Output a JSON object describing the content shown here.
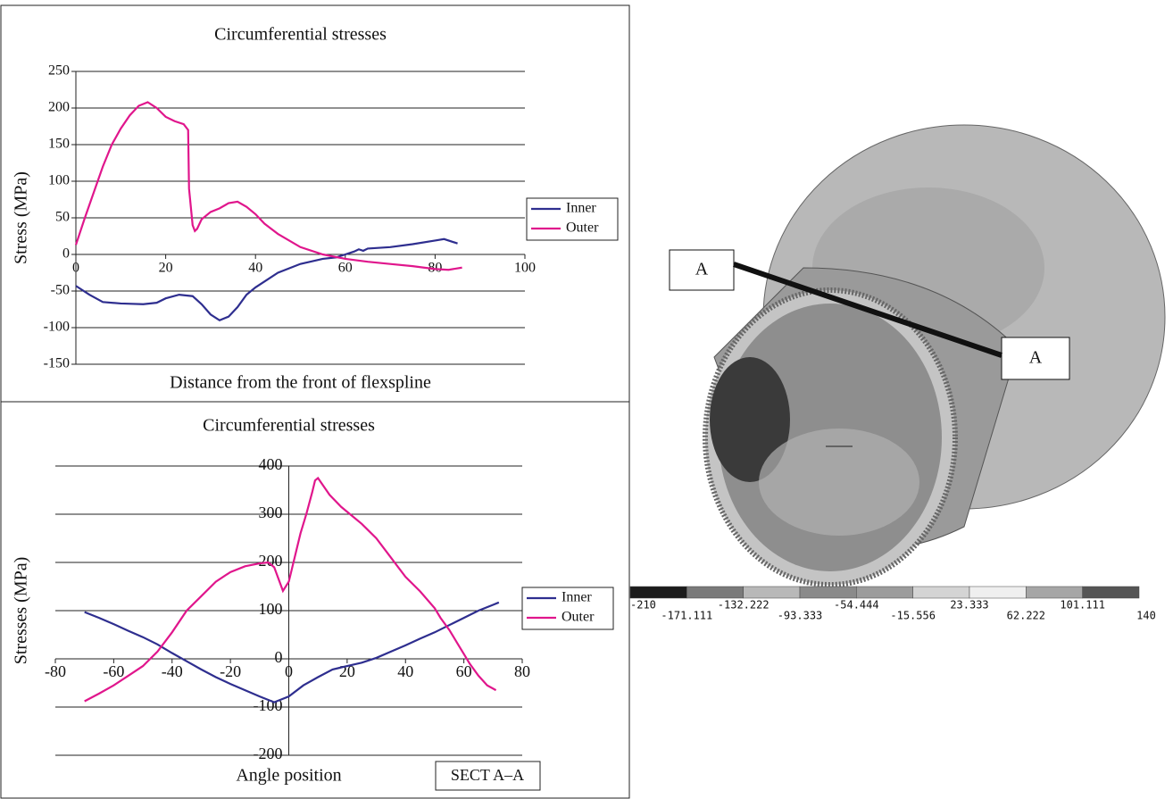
{
  "chart_data": [
    {
      "type": "line",
      "title": "Circumferential stresses",
      "x_label": "Distance from the front of flexspline",
      "y_label": "Stress (MPa)",
      "xlim": [
        0,
        100
      ],
      "xticks": [
        0,
        20,
        40,
        60,
        80,
        100
      ],
      "ylim": [
        -150,
        250
      ],
      "yticks": [
        -150,
        -100,
        -50,
        0,
        50,
        100,
        150,
        200,
        250
      ],
      "grid": true,
      "legend": "right",
      "series": [
        {
          "name": "Inner",
          "color": "#2e2e8f",
          "x": [
            0,
            3,
            6,
            10,
            15,
            18,
            20,
            23,
            26,
            28,
            30,
            32,
            34,
            36,
            38,
            40,
            45,
            50,
            55,
            58,
            60,
            62,
            63,
            64,
            65,
            70,
            75,
            80,
            82,
            85
          ],
          "values": [
            -43,
            -55,
            -65,
            -67,
            -68,
            -66,
            -60,
            -55,
            -57,
            -68,
            -82,
            -90,
            -85,
            -72,
            -55,
            -45,
            -25,
            -13,
            -6,
            -4,
            0,
            4,
            7,
            5,
            8,
            10,
            14,
            19,
            21,
            15
          ]
        },
        {
          "name": "Outer",
          "color": "#e0168c",
          "x": [
            0,
            2,
            4,
            6,
            8,
            10,
            12,
            14,
            16,
            18,
            20,
            22,
            24,
            25,
            25.2,
            26,
            26.5,
            27,
            28,
            30,
            32,
            34,
            36,
            38,
            40,
            42,
            45,
            50,
            55,
            60,
            65,
            70,
            75,
            80,
            83,
            86
          ],
          "values": [
            13,
            50,
            85,
            120,
            150,
            172,
            190,
            203,
            208,
            200,
            188,
            182,
            178,
            170,
            90,
            40,
            32,
            35,
            48,
            58,
            63,
            70,
            72,
            65,
            55,
            42,
            28,
            10,
            0,
            -6,
            -10,
            -13,
            -16,
            -20,
            -21,
            -18
          ]
        }
      ]
    },
    {
      "type": "line",
      "title": "Circumferential stresses",
      "x_label": "Angle position",
      "y_label": "Stresses (MPa)",
      "annotation": "SECT A–A",
      "xlim": [
        -80,
        80
      ],
      "xticks": [
        -80,
        -60,
        -40,
        -20,
        0,
        20,
        40,
        60,
        80
      ],
      "ylim": [
        -200,
        400
      ],
      "yticks": [
        -200,
        -100,
        0,
        100,
        200,
        300,
        400
      ],
      "grid": true,
      "legend": "right",
      "series": [
        {
          "name": "Inner",
          "color": "#2e2e8f",
          "x": [
            -70,
            -65,
            -60,
            -55,
            -50,
            -45,
            -40,
            -35,
            -30,
            -25,
            -20,
            -15,
            -10,
            -5,
            0,
            5,
            10,
            15,
            20,
            25,
            30,
            35,
            40,
            45,
            50,
            55,
            60,
            65,
            70,
            72
          ],
          "values": [
            97,
            85,
            72,
            58,
            45,
            30,
            12,
            -5,
            -22,
            -38,
            -52,
            -65,
            -78,
            -90,
            -78,
            -55,
            -38,
            -22,
            -15,
            -8,
            2,
            15,
            28,
            42,
            55,
            70,
            85,
            100,
            112,
            117
          ]
        },
        {
          "name": "Outer",
          "color": "#e0168c",
          "x": [
            -70,
            -65,
            -60,
            -55,
            -50,
            -45,
            -40,
            -35,
            -30,
            -25,
            -20,
            -15,
            -10,
            -7,
            -5,
            -2,
            0,
            2,
            4,
            6,
            8,
            9,
            10,
            14,
            18,
            25,
            30,
            35,
            40,
            45,
            50,
            52,
            55,
            58,
            60,
            62,
            65,
            68,
            71
          ],
          "values": [
            -88,
            -72,
            -55,
            -35,
            -15,
            15,
            55,
            100,
            130,
            160,
            180,
            192,
            198,
            200,
            190,
            141,
            160,
            210,
            260,
            300,
            345,
            370,
            375,
            340,
            315,
            280,
            250,
            210,
            170,
            140,
            105,
            85,
            60,
            30,
            10,
            -10,
            -35,
            -55,
            -65
          ]
        }
      ]
    }
  ],
  "model_view": {
    "section_labels": [
      "A",
      "A"
    ],
    "colorbar_labels": [
      -210,
      -171.111,
      -132.222,
      -93.333,
      -54.444,
      -15.556,
      23.333,
      62.222,
      101.111,
      140
    ],
    "colorbar_colors": [
      "#1c1c1c",
      "#7a7a7a",
      "#b8b8b8",
      "#8a8a8a",
      "#9c9c9c",
      "#d4d4d4",
      "#efefef",
      "#a6a6a6",
      "#555555"
    ]
  }
}
